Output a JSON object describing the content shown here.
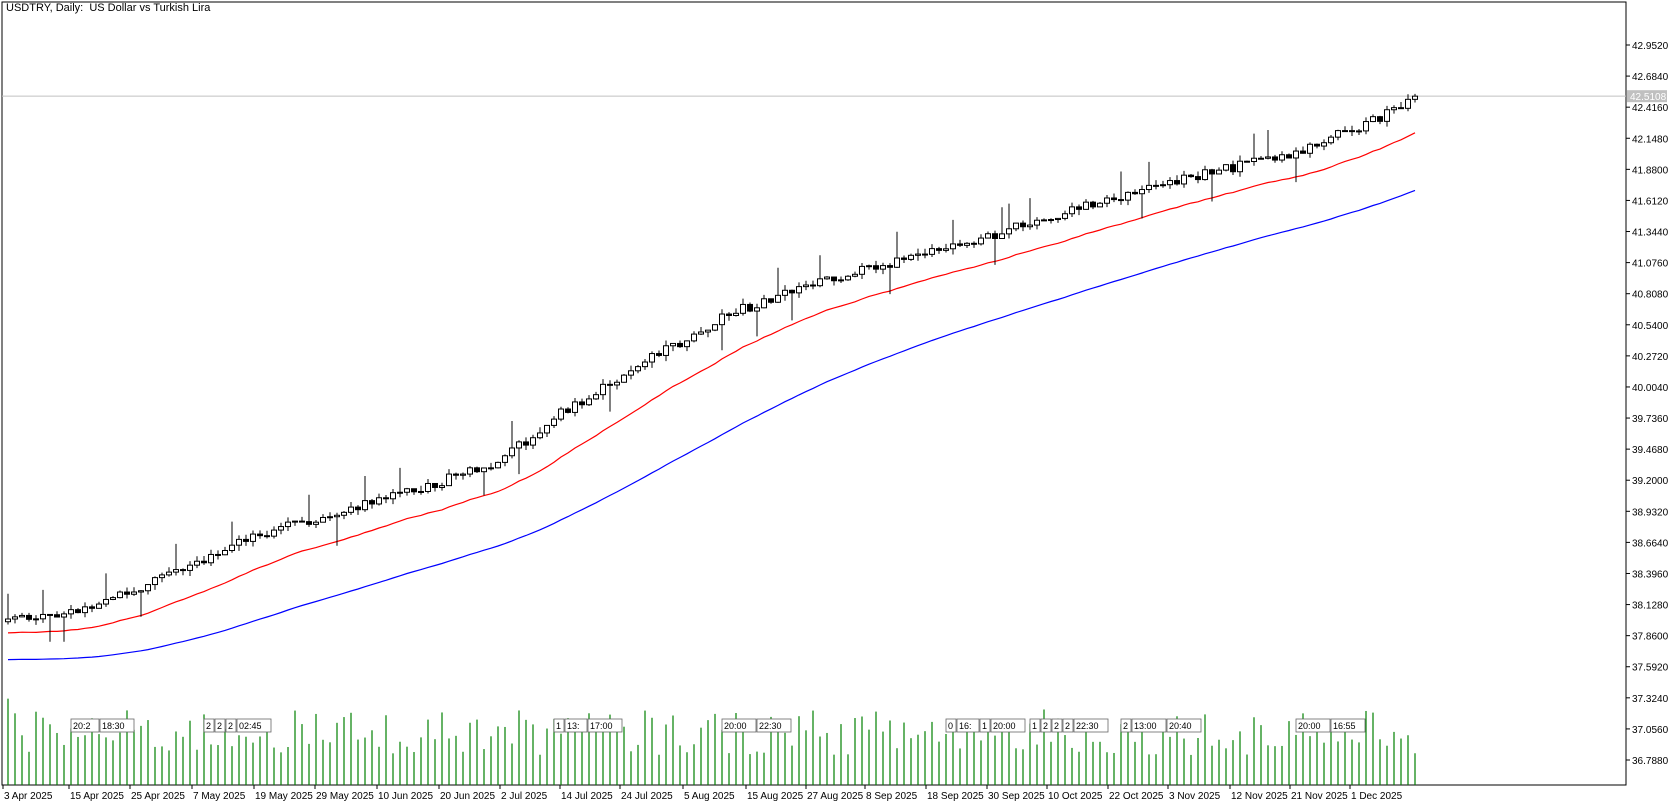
{
  "chart_data": {
    "type": "candlestick",
    "title": "USDTRY, Daily:  US Dollar vs Turkish Lira",
    "symbol": "USDTRY",
    "timeframe": "Daily",
    "description": "US Dollar vs Turkish Lira",
    "current_price": "42.5108",
    "y_ticks": [
      "42.9520",
      "42.6840",
      "42.4160",
      "42.1480",
      "41.8800",
      "41.6120",
      "41.3440",
      "41.0760",
      "40.8080",
      "40.5400",
      "40.2720",
      "40.0040",
      "39.7360",
      "39.4680",
      "39.2000",
      "38.9320",
      "38.6640",
      "38.3960",
      "38.1280",
      "37.8600",
      "37.5920",
      "37.3240",
      "37.0560",
      "36.7880"
    ],
    "x_ticks": [
      "3 Apr 2025",
      "15 Apr 2025",
      "25 Apr 2025",
      "7 May 2025",
      "19 May 2025",
      "29 May 2025",
      "10 Jun 2025",
      "20 Jun 2025",
      "2 Jul 2025",
      "14 Jul 2025",
      "24 Jul 2025",
      "5 Aug 2025",
      "15 Aug 2025",
      "27 Aug 2025",
      "8 Sep 2025",
      "18 Sep 2025",
      "30 Sep 2025",
      "10 Oct 2025",
      "22 Oct 2025",
      "3 Nov 2025",
      "12 Nov 2025",
      "21 Nov 2025",
      "1 Dec 2025"
    ],
    "ylim": [
      36.58,
      43.2
    ],
    "grid": false,
    "volume_label_groups": [
      {
        "index": 9,
        "labels": [
          "20:2",
          "18:30"
        ]
      },
      {
        "index": 28,
        "labels": [
          "2",
          "2",
          "2",
          "02:45"
        ]
      },
      {
        "index": 78,
        "labels": [
          "1",
          "13:",
          "17:00"
        ]
      },
      {
        "index": 102,
        "labels": [
          "20:00",
          "22:30"
        ]
      },
      {
        "index": 134,
        "labels": [
          "0",
          "16:",
          "1",
          "20:00"
        ]
      },
      {
        "index": 146,
        "labels": [
          "1",
          "2",
          "2",
          "2",
          "22:30"
        ]
      },
      {
        "index": 159,
        "labels": [
          "2",
          "13:00",
          "20:40"
        ]
      },
      {
        "index": 184,
        "labels": [
          "20:00",
          "16:55"
        ]
      }
    ],
    "series": [
      {
        "name": "EMA fast",
        "color": "#ff0000"
      },
      {
        "name": "EMA slow",
        "color": "#0000ff"
      },
      {
        "name": "Volume",
        "color": "#008000"
      }
    ]
  },
  "colors": {
    "up_body": "#ffffff",
    "down_body": "#000000",
    "wick": "#000000",
    "ema_fast": "#ff0000",
    "ema_slow": "#0000ff",
    "volume": "#008000",
    "price_line": "#c0c0c0",
    "axis": "#000000",
    "price_tag_bg": "#c0c0c0"
  }
}
